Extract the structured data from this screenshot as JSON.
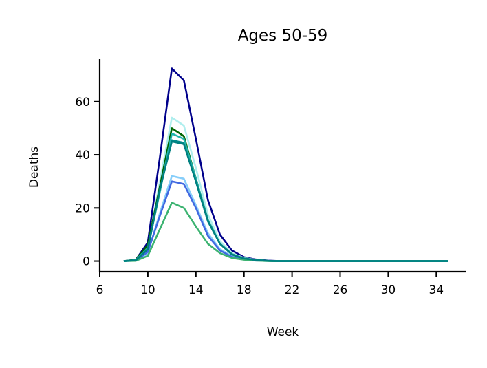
{
  "chart_data": {
    "type": "line",
    "title": "Ages 50-59",
    "xlabel": "Week",
    "ylabel": "Deaths",
    "xlim": [
      6,
      36.5
    ],
    "ylim": [
      -4,
      76
    ],
    "xticks": [
      6,
      10,
      14,
      18,
      22,
      26,
      30,
      34
    ],
    "yticks": [
      0,
      20,
      40,
      60
    ],
    "grid": false,
    "legend": "none",
    "x": [
      8,
      9,
      10,
      11,
      12,
      13,
      14,
      15,
      16,
      17,
      18,
      19,
      20,
      21,
      22,
      23,
      24,
      25,
      26,
      27,
      28,
      29,
      30,
      31,
      32,
      33,
      34,
      35
    ],
    "series": [
      {
        "color": "#00008b",
        "values": [
          0,
          0.5,
          7,
          39,
          72.5,
          68,
          46,
          23,
          10,
          4,
          1.5,
          0.6,
          0.2,
          0,
          0,
          0,
          0,
          0,
          0,
          0,
          0,
          0,
          0,
          0,
          0,
          0,
          0,
          0
        ]
      },
      {
        "color": "#afeeee",
        "values": [
          0,
          0.4,
          5,
          30,
          54,
          51,
          35,
          17.5,
          7.5,
          3,
          1.2,
          0.5,
          0.1,
          0,
          0,
          0,
          0,
          0,
          0,
          0,
          0,
          0,
          0,
          0,
          0,
          0,
          0,
          0
        ]
      },
      {
        "color": "#87cefa",
        "values": [
          0,
          0.2,
          3,
          18,
          32,
          31,
          21,
          10.5,
          4.5,
          1.8,
          0.7,
          0.3,
          0.1,
          0,
          0,
          0,
          0,
          0,
          0,
          0,
          0,
          0,
          0,
          0,
          0,
          0,
          0,
          0
        ]
      },
      {
        "color": "#4169e1",
        "values": [
          0,
          0.2,
          3.5,
          17,
          30,
          29,
          20,
          9.5,
          4,
          1.6,
          0.6,
          0.2,
          0.1,
          0,
          0,
          0,
          0,
          0,
          0,
          0,
          0,
          0,
          0,
          0,
          0,
          0,
          0,
          0
        ]
      },
      {
        "color": "#3cb371",
        "values": [
          0,
          0.1,
          2,
          12,
          22,
          20,
          13,
          6.5,
          3,
          1.2,
          0.5,
          0.2,
          0,
          0,
          0,
          0,
          0,
          0,
          0,
          0,
          0,
          0,
          0,
          0,
          0,
          0,
          0,
          0
        ]
      },
      {
        "color": "#006400",
        "values": [
          0,
          0.5,
          6,
          28,
          50,
          47,
          31,
          15.5,
          6.5,
          2.6,
          1,
          0.4,
          0.1,
          0,
          0,
          0,
          0,
          0,
          0,
          0,
          0,
          0,
          0,
          0,
          0,
          0,
          0,
          0
        ]
      },
      {
        "color": "#008b8b",
        "values": [
          0,
          0.3,
          4.5,
          27,
          45.5,
          44.5,
          30,
          15,
          6.5,
          2.5,
          1,
          0.4,
          0.1,
          0,
          0,
          0,
          0,
          0,
          0,
          0,
          0,
          0,
          0,
          0,
          0,
          0,
          0,
          0
        ]
      },
      {
        "color": "#20b2aa",
        "values": [
          0,
          0.4,
          5,
          26,
          48,
          46,
          31,
          15.5,
          6.5,
          2.6,
          1,
          0.4,
          0.1,
          0,
          0,
          0,
          0,
          0,
          0,
          0,
          0,
          0,
          0,
          0,
          0,
          0,
          0,
          0
        ]
      },
      {
        "color": "#008080",
        "values": [
          0,
          0.3,
          4.5,
          27,
          45,
          44,
          30,
          15,
          6.5,
          2.5,
          1,
          0.4,
          0.1,
          0,
          0,
          0,
          0,
          0,
          0,
          0,
          0,
          0,
          0,
          0,
          0,
          0,
          0,
          0
        ]
      }
    ]
  }
}
